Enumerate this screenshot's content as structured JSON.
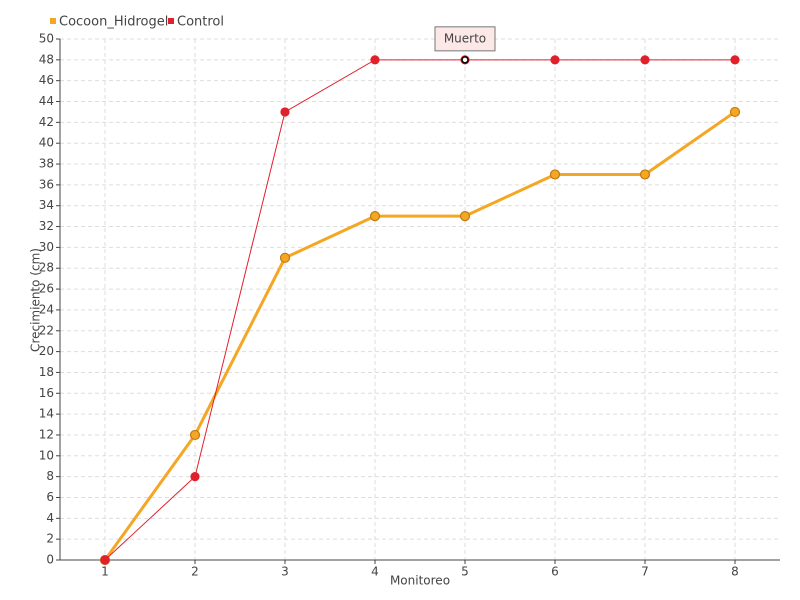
{
  "chart_data": {
    "type": "line",
    "x": [
      1,
      2,
      3,
      4,
      5,
      6,
      7,
      8
    ],
    "xlim": [
      0.5,
      8.5
    ],
    "xticks": [
      1,
      2,
      3,
      4,
      5,
      6,
      7,
      8
    ],
    "ylim": [
      0,
      50
    ],
    "yticks": [
      0,
      2,
      4,
      6,
      8,
      10,
      12,
      14,
      16,
      18,
      20,
      22,
      24,
      26,
      28,
      30,
      32,
      34,
      36,
      38,
      40,
      42,
      44,
      46,
      48,
      50
    ],
    "x_label": "Monitoreo",
    "y_label": "Crecimiento (cm)",
    "grid": true,
    "legend": "top-left",
    "series": [
      {
        "name": "Cocoon_Hidrogel",
        "color": "#f5a623",
        "values": [
          0,
          12,
          29,
          33,
          33,
          37,
          37,
          43
        ]
      },
      {
        "name": "Control",
        "color": "#e0202a",
        "values": [
          0,
          8,
          43,
          48,
          48,
          48,
          48,
          48
        ]
      }
    ],
    "annotations": [
      {
        "text": "Muerto",
        "series": 1,
        "index": 4
      }
    ]
  }
}
